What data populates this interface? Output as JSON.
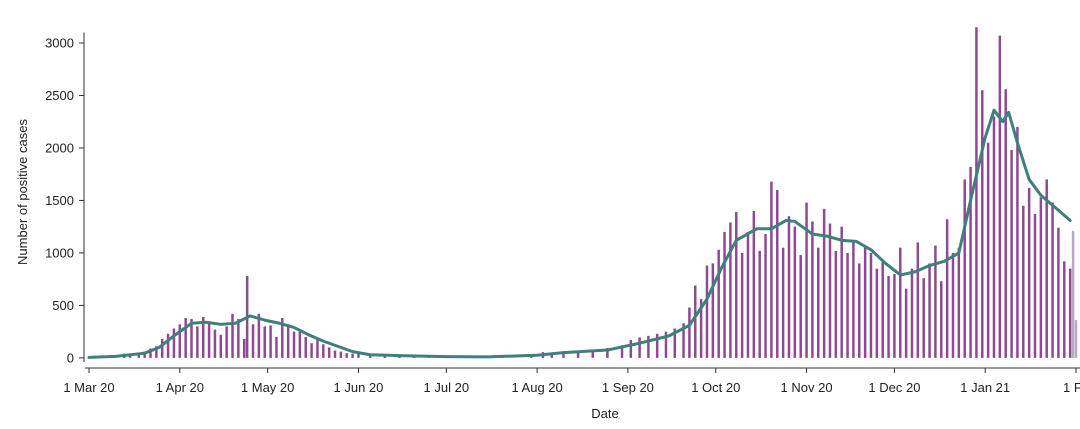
{
  "chart_data": {
    "type": "bar",
    "xlabel": "Date",
    "ylabel": "Number of positive cases",
    "ylim": [
      -20,
      3200
    ],
    "yticks": [
      0,
      500,
      1000,
      1500,
      2000,
      2500,
      3000
    ],
    "xticks": [
      {
        "date": "2020-03-01",
        "label": "1 Mar 20"
      },
      {
        "date": "2020-04-01",
        "label": "1 Apr 20"
      },
      {
        "date": "2020-05-01",
        "label": "1 May 20"
      },
      {
        "date": "2020-06-01",
        "label": "1 Jun 20"
      },
      {
        "date": "2020-07-01",
        "label": "1 Jul 20"
      },
      {
        "date": "2020-08-01",
        "label": "1 Aug 20"
      },
      {
        "date": "2020-09-01",
        "label": "1 Sep 20"
      },
      {
        "date": "2020-10-01",
        "label": "1 Oct 20"
      },
      {
        "date": "2020-11-01",
        "label": "1 Nov 20"
      },
      {
        "date": "2020-12-01",
        "label": "1 Dec 20"
      },
      {
        "date": "2021-01-01",
        "label": "1 Jan 21"
      },
      {
        "date": "2021-02-01",
        "label": "1 F"
      }
    ],
    "series": [
      {
        "type": "bar",
        "color": "#8e4a91",
        "points": [
          [
            "2020-03-01",
            5
          ],
          [
            "2020-03-05",
            8
          ],
          [
            "2020-03-10",
            20
          ],
          [
            "2020-03-13",
            40
          ],
          [
            "2020-03-15",
            35
          ],
          [
            "2020-03-18",
            45
          ],
          [
            "2020-03-20",
            60
          ],
          [
            "2020-03-22",
            90
          ],
          [
            "2020-03-24",
            110
          ],
          [
            "2020-03-26",
            180
          ],
          [
            "2020-03-28",
            230
          ],
          [
            "2020-03-30",
            280
          ],
          [
            "2020-04-01",
            320
          ],
          [
            "2020-04-03",
            380
          ],
          [
            "2020-04-05",
            370
          ],
          [
            "2020-04-07",
            300
          ],
          [
            "2020-04-09",
            390
          ],
          [
            "2020-04-11",
            330
          ],
          [
            "2020-04-13",
            270
          ],
          [
            "2020-04-15",
            220
          ],
          [
            "2020-04-17",
            300
          ],
          [
            "2020-04-19",
            420
          ],
          [
            "2020-04-21",
            370
          ],
          [
            "2020-04-23",
            180
          ],
          [
            "2020-04-24",
            780
          ],
          [
            "2020-04-26",
            320
          ],
          [
            "2020-04-28",
            420
          ],
          [
            "2020-04-30",
            300
          ],
          [
            "2020-05-02",
            310
          ],
          [
            "2020-05-04",
            200
          ],
          [
            "2020-05-06",
            380
          ],
          [
            "2020-05-08",
            320
          ],
          [
            "2020-05-10",
            250
          ],
          [
            "2020-05-12",
            250
          ],
          [
            "2020-05-14",
            200
          ],
          [
            "2020-05-16",
            140
          ],
          [
            "2020-05-18",
            170
          ],
          [
            "2020-05-20",
            130
          ],
          [
            "2020-05-22",
            100
          ],
          [
            "2020-05-24",
            70
          ],
          [
            "2020-05-26",
            60
          ],
          [
            "2020-05-28",
            45
          ],
          [
            "2020-05-30",
            40
          ],
          [
            "2020-06-01",
            40
          ],
          [
            "2020-06-05",
            32
          ],
          [
            "2020-06-10",
            28
          ],
          [
            "2020-06-15",
            25
          ],
          [
            "2020-06-20",
            20
          ],
          [
            "2020-06-25",
            16
          ],
          [
            "2020-07-01",
            12
          ],
          [
            "2020-07-10",
            10
          ],
          [
            "2020-07-20",
            12
          ],
          [
            "2020-07-30",
            20
          ],
          [
            "2020-08-03",
            55
          ],
          [
            "2020-08-06",
            45
          ],
          [
            "2020-08-10",
            60
          ],
          [
            "2020-08-15",
            65
          ],
          [
            "2020-08-20",
            80
          ],
          [
            "2020-08-25",
            95
          ],
          [
            "2020-08-30",
            120
          ],
          [
            "2020-09-02",
            170
          ],
          [
            "2020-09-05",
            195
          ],
          [
            "2020-09-08",
            210
          ],
          [
            "2020-09-11",
            230
          ],
          [
            "2020-09-14",
            250
          ],
          [
            "2020-09-17",
            280
          ],
          [
            "2020-09-20",
            330
          ],
          [
            "2020-09-22",
            480
          ],
          [
            "2020-09-24",
            690
          ],
          [
            "2020-09-26",
            560
          ],
          [
            "2020-09-28",
            880
          ],
          [
            "2020-09-30",
            900
          ],
          [
            "2020-10-02",
            1030
          ],
          [
            "2020-10-04",
            1200
          ],
          [
            "2020-10-06",
            1290
          ],
          [
            "2020-10-08",
            1390
          ],
          [
            "2020-10-10",
            1000
          ],
          [
            "2020-10-12",
            1200
          ],
          [
            "2020-10-14",
            1400
          ],
          [
            "2020-10-16",
            1020
          ],
          [
            "2020-10-18",
            1180
          ],
          [
            "2020-10-20",
            1680
          ],
          [
            "2020-10-22",
            1600
          ],
          [
            "2020-10-24",
            1050
          ],
          [
            "2020-10-26",
            1350
          ],
          [
            "2020-10-28",
            1250
          ],
          [
            "2020-10-30",
            980
          ],
          [
            "2020-11-01",
            1480
          ],
          [
            "2020-11-03",
            1300
          ],
          [
            "2020-11-05",
            1050
          ],
          [
            "2020-11-07",
            1420
          ],
          [
            "2020-11-09",
            1280
          ],
          [
            "2020-11-11",
            1020
          ],
          [
            "2020-11-13",
            1250
          ],
          [
            "2020-11-15",
            1000
          ],
          [
            "2020-11-17",
            1100
          ],
          [
            "2020-11-19",
            900
          ],
          [
            "2020-11-21",
            1070
          ],
          [
            "2020-11-23",
            1000
          ],
          [
            "2020-11-25",
            850
          ],
          [
            "2020-11-27",
            920
          ],
          [
            "2020-11-29",
            780
          ],
          [
            "2020-12-01",
            800
          ],
          [
            "2020-12-03",
            1050
          ],
          [
            "2020-12-05",
            660
          ],
          [
            "2020-12-07",
            850
          ],
          [
            "2020-12-09",
            1100
          ],
          [
            "2020-12-11",
            760
          ],
          [
            "2020-12-13",
            900
          ],
          [
            "2020-12-15",
            1070
          ],
          [
            "2020-12-17",
            730
          ],
          [
            "2020-12-19",
            1320
          ],
          [
            "2020-12-21",
            1000
          ],
          [
            "2020-12-23",
            1050
          ],
          [
            "2020-12-25",
            1700
          ],
          [
            "2020-12-27",
            1820
          ],
          [
            "2020-12-29",
            3150
          ],
          [
            "2020-12-31",
            2550
          ],
          [
            "2021-01-02",
            2050
          ],
          [
            "2021-01-04",
            2300
          ],
          [
            "2021-01-06",
            3070
          ],
          [
            "2021-01-08",
            2560
          ],
          [
            "2021-01-10",
            1980
          ],
          [
            "2021-01-12",
            2200
          ],
          [
            "2021-01-14",
            1450
          ],
          [
            "2021-01-16",
            1620
          ],
          [
            "2021-01-18",
            1370
          ],
          [
            "2021-01-20",
            1530
          ],
          [
            "2021-01-22",
            1700
          ],
          [
            "2021-01-24",
            1480
          ],
          [
            "2021-01-26",
            1240
          ],
          [
            "2021-01-28",
            920
          ],
          [
            "2021-01-30",
            850
          ]
        ]
      },
      {
        "type": "bar",
        "color": "#b8a9c6",
        "points": [
          [
            "2021-01-31",
            1210
          ],
          [
            "2021-02-01",
            360
          ]
        ]
      },
      {
        "type": "line",
        "color": "#3f7f7c",
        "points": [
          [
            "2020-03-01",
            5
          ],
          [
            "2020-03-10",
            15
          ],
          [
            "2020-03-20",
            45
          ],
          [
            "2020-03-25",
            100
          ],
          [
            "2020-03-30",
            210
          ],
          [
            "2020-04-05",
            330
          ],
          [
            "2020-04-10",
            340
          ],
          [
            "2020-04-15",
            320
          ],
          [
            "2020-04-20",
            330
          ],
          [
            "2020-04-25",
            400
          ],
          [
            "2020-04-30",
            360
          ],
          [
            "2020-05-05",
            330
          ],
          [
            "2020-05-10",
            290
          ],
          [
            "2020-05-15",
            220
          ],
          [
            "2020-05-20",
            160
          ],
          [
            "2020-05-25",
            110
          ],
          [
            "2020-05-30",
            60
          ],
          [
            "2020-06-05",
            30
          ],
          [
            "2020-06-15",
            22
          ],
          [
            "2020-07-01",
            12
          ],
          [
            "2020-07-15",
            10
          ],
          [
            "2020-08-01",
            25
          ],
          [
            "2020-08-10",
            50
          ],
          [
            "2020-08-25",
            75
          ],
          [
            "2020-09-05",
            140
          ],
          [
            "2020-09-15",
            210
          ],
          [
            "2020-09-22",
            310
          ],
          [
            "2020-09-28",
            560
          ],
          [
            "2020-10-03",
            860
          ],
          [
            "2020-10-08",
            1120
          ],
          [
            "2020-10-15",
            1230
          ],
          [
            "2020-10-20",
            1230
          ],
          [
            "2020-10-25",
            1310
          ],
          [
            "2020-10-28",
            1300
          ],
          [
            "2020-11-03",
            1180
          ],
          [
            "2020-11-08",
            1160
          ],
          [
            "2020-11-13",
            1120
          ],
          [
            "2020-11-18",
            1110
          ],
          [
            "2020-11-23",
            1030
          ],
          [
            "2020-11-28",
            900
          ],
          [
            "2020-12-03",
            790
          ],
          [
            "2020-12-08",
            820
          ],
          [
            "2020-12-13",
            880
          ],
          [
            "2020-12-18",
            920
          ],
          [
            "2020-12-23",
            1000
          ],
          [
            "2020-12-27",
            1500
          ],
          [
            "2021-01-01",
            2100
          ],
          [
            "2021-01-04",
            2360
          ],
          [
            "2021-01-07",
            2250
          ],
          [
            "2021-01-09",
            2340
          ],
          [
            "2021-01-12",
            2050
          ],
          [
            "2021-01-16",
            1700
          ],
          [
            "2021-01-20",
            1550
          ],
          [
            "2021-01-25",
            1430
          ],
          [
            "2021-01-30",
            1310
          ]
        ]
      }
    ]
  }
}
